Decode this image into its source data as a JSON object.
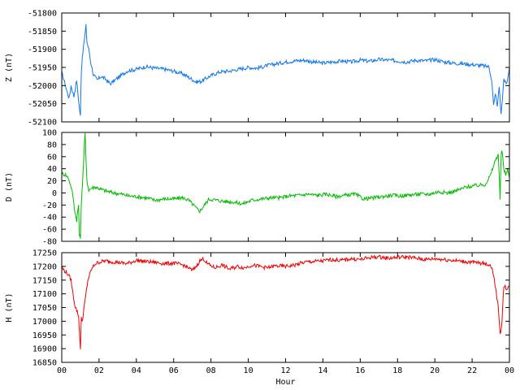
{
  "chart_data": {
    "type": "line",
    "xlabel": "Hour",
    "x_ticks": [
      "00",
      "02",
      "04",
      "06",
      "08",
      "10",
      "12",
      "14",
      "16",
      "18",
      "20",
      "22",
      "00"
    ],
    "xlim": [
      0,
      24
    ],
    "panels": [
      {
        "ylabel": "Z (nT)",
        "color": "#1177ee",
        "ylim": [
          -52100,
          -51800
        ],
        "y_ticks": [
          -51800,
          -51850,
          -51900,
          -51950,
          -52000,
          -52050,
          -52100
        ],
        "series": {
          "x": [
            0,
            0.15,
            0.3,
            0.4,
            0.5,
            0.65,
            0.8,
            0.9,
            1.0,
            1.05,
            1.1,
            1.2,
            1.3,
            1.35,
            1.45,
            1.55,
            1.7,
            1.9,
            2.1,
            2.3,
            2.6,
            2.85,
            3.1,
            3.5,
            4.0,
            4.5,
            5.0,
            5.5,
            6.0,
            6.5,
            6.9,
            7.2,
            7.5,
            7.8,
            8.1,
            8.5,
            9.0,
            9.5,
            10.0,
            10.5,
            11.0,
            11.5,
            12.0,
            12.5,
            13.0,
            13.5,
            14.0,
            14.5,
            15.0,
            15.5,
            16.0,
            16.5,
            17.0,
            17.5,
            18.0,
            18.5,
            19.0,
            19.5,
            20.0,
            20.5,
            21.0,
            21.5,
            22.0,
            22.5,
            22.9,
            23.05,
            23.15,
            23.25,
            23.35,
            23.45,
            23.55,
            23.7,
            23.85,
            24.0
          ],
          "y": [
            -51965,
            -51990,
            -52020,
            -52035,
            -52000,
            -52030,
            -51985,
            -52040,
            -52085,
            -51960,
            -51920,
            -51880,
            -51835,
            -51880,
            -51900,
            -51935,
            -51970,
            -51985,
            -51975,
            -51980,
            -51995,
            -51985,
            -51975,
            -51960,
            -51955,
            -51948,
            -51952,
            -51955,
            -51960,
            -51968,
            -51980,
            -51990,
            -51988,
            -51978,
            -51970,
            -51962,
            -51960,
            -51955,
            -51950,
            -51952,
            -51945,
            -51940,
            -51935,
            -51932,
            -51930,
            -51935,
            -51938,
            -51935,
            -51932,
            -51935,
            -51930,
            -51933,
            -51928,
            -51930,
            -51932,
            -51935,
            -51930,
            -51932,
            -51928,
            -51935,
            -51938,
            -51940,
            -51942,
            -51945,
            -51948,
            -51985,
            -52055,
            -52020,
            -52060,
            -52000,
            -52080,
            -51985,
            -51995,
            -51950
          ]
        }
      },
      {
        "ylabel": "D (nT)",
        "color": "#00bb00",
        "ylim": [
          -80,
          100
        ],
        "y_ticks": [
          100,
          80,
          60,
          40,
          20,
          0,
          -20,
          -40,
          -60,
          -80
        ],
        "series": {
          "x": [
            0,
            0.2,
            0.35,
            0.5,
            0.6,
            0.7,
            0.8,
            0.9,
            0.95,
            1.0,
            1.05,
            1.15,
            1.25,
            1.3,
            1.35,
            1.45,
            1.6,
            1.8,
            2.1,
            2.4,
            2.8,
            3.2,
            3.6,
            4.0,
            4.5,
            5.0,
            5.5,
            6.0,
            6.5,
            6.8,
            7.0,
            7.2,
            7.4,
            7.6,
            7.9,
            8.3,
            8.7,
            9.2,
            9.7,
            10.2,
            10.7,
            11.2,
            11.7,
            12.2,
            12.7,
            13.2,
            13.7,
            14.2,
            14.7,
            15.2,
            15.7,
            16.2,
            16.7,
            17.2,
            17.7,
            18.2,
            18.7,
            19.2,
            19.7,
            20.2,
            20.7,
            21.2,
            21.7,
            22.2,
            22.7,
            23.0,
            23.2,
            23.4,
            23.5,
            23.55,
            23.6,
            23.7,
            23.8,
            23.9,
            24.0
          ],
          "y": [
            32,
            30,
            25,
            10,
            -5,
            -30,
            -45,
            -20,
            -70,
            -75,
            -20,
            40,
            100,
            55,
            20,
            5,
            8,
            10,
            6,
            3,
            0,
            -2,
            -5,
            -6,
            -8,
            -12,
            -10,
            -10,
            -8,
            -12,
            -18,
            -25,
            -30,
            -22,
            -10,
            -12,
            -14,
            -15,
            -18,
            -12,
            -10,
            -8,
            -8,
            -5,
            -4,
            -2,
            -4,
            -2,
            -6,
            -4,
            -2,
            -10,
            -8,
            -6,
            -4,
            -5,
            -3,
            -2,
            -2,
            2,
            0,
            4,
            10,
            12,
            14,
            30,
            50,
            65,
            -10,
            60,
            70,
            40,
            30,
            40,
            25
          ]
        }
      },
      {
        "ylabel": "H (nT)",
        "color": "#ee0000",
        "ylim": [
          16850,
          17250
        ],
        "y_ticks": [
          17250,
          17200,
          17150,
          17100,
          17050,
          17000,
          16950,
          16900,
          16850
        ],
        "series": {
          "x": [
            0,
            0.2,
            0.35,
            0.5,
            0.6,
            0.7,
            0.8,
            0.9,
            1.0,
            1.05,
            1.1,
            1.2,
            1.3,
            1.4,
            1.6,
            1.8,
            2.0,
            2.3,
            2.6,
            3.0,
            3.5,
            4.0,
            4.5,
            5.0,
            5.5,
            6.0,
            6.5,
            6.8,
            7.0,
            7.2,
            7.4,
            7.6,
            7.8,
            8.2,
            8.6,
            9.0,
            9.4,
            9.8,
            10.2,
            10.6,
            11.0,
            11.5,
            12.0,
            12.5,
            13.0,
            13.5,
            14.0,
            14.5,
            15.0,
            15.5,
            16.0,
            16.5,
            17.0,
            17.5,
            18.0,
            18.5,
            19.0,
            19.5,
            20.0,
            20.5,
            21.0,
            21.5,
            22.0,
            22.5,
            23.0,
            23.15,
            23.3,
            23.4,
            23.5,
            23.6,
            23.7,
            23.85,
            24.0
          ],
          "y": [
            17195,
            17180,
            17170,
            17150,
            17100,
            17060,
            17040,
            17020,
            16900,
            17010,
            17000,
            17050,
            17100,
            17150,
            17190,
            17210,
            17215,
            17220,
            17218,
            17215,
            17210,
            17222,
            17218,
            17215,
            17210,
            17212,
            17205,
            17195,
            17185,
            17200,
            17220,
            17228,
            17210,
            17195,
            17205,
            17190,
            17200,
            17195,
            17205,
            17200,
            17195,
            17202,
            17200,
            17205,
            17215,
            17218,
            17220,
            17225,
            17222,
            17228,
            17225,
            17232,
            17235,
            17230,
            17233,
            17235,
            17230,
            17225,
            17228,
            17225,
            17222,
            17218,
            17215,
            17212,
            17205,
            17170,
            17100,
            17050,
            16950,
            17000,
            17130,
            17120,
            17130
          ]
        }
      }
    ]
  }
}
